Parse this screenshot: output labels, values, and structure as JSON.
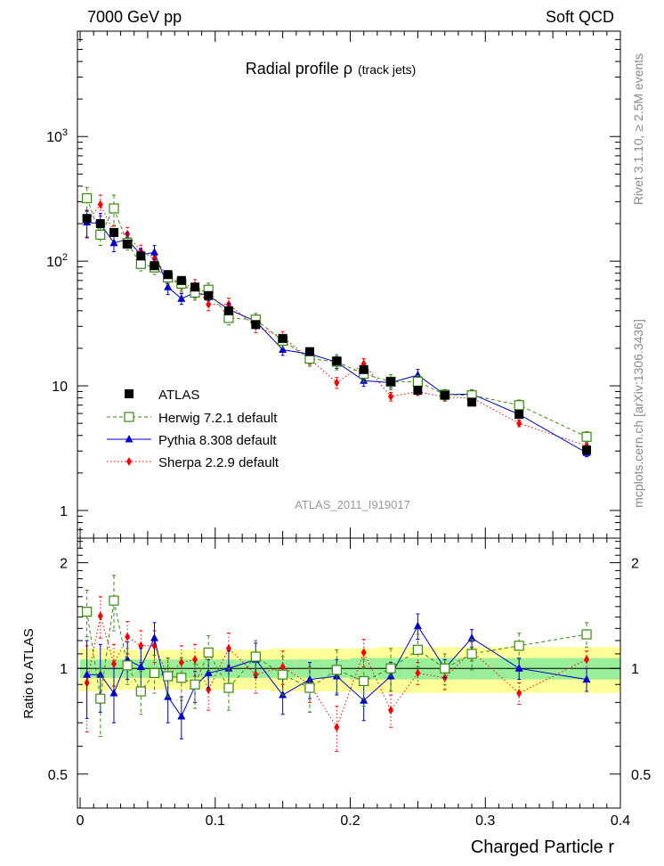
{
  "header": {
    "left": "7000 GeV pp",
    "right": "Soft QCD",
    "side_top": "Rivet 3.1.10, ≥ 2.5M events",
    "side_bottom": "mcplots.cern.ch [arXiv:1306.3436]"
  },
  "chart_data": {
    "type": "scatter",
    "title": "Radial profile  ρ",
    "title_small": "(track jets)",
    "watermark": "ATLAS_2011_I919017",
    "xlabel": "Charged Particle r",
    "ylabel_ratio": "Ratio to ATLAS",
    "log_y": true,
    "xlim": [
      -0.002,
      0.4
    ],
    "ylim": [
      0.6,
      7000
    ],
    "ratio_ylim": [
      0.4,
      2.35
    ],
    "x_ticks": [
      "0",
      "0.1",
      "0.2",
      "0.3",
      "0.4"
    ],
    "y_ticks": [
      "1",
      "10",
      "10^2",
      "10^3"
    ],
    "ratio_y_ticks": [
      "0.5",
      "1",
      "2"
    ],
    "legend_position": "left",
    "x": [
      0.005,
      0.015,
      0.025,
      0.035,
      0.045,
      0.055,
      0.065,
      0.075,
      0.085,
      0.095,
      0.11,
      0.13,
      0.15,
      0.17,
      0.19,
      0.21,
      0.23,
      0.25,
      0.27,
      0.29,
      0.325,
      0.375
    ],
    "series": [
      {
        "name": "ATLAS",
        "color": "#000000",
        "values": [
          220,
          200,
          170,
          137,
          110,
          92,
          78,
          70,
          62,
          53,
          40,
          31,
          24,
          18.8,
          15.8,
          13.5,
          10.8,
          9.2,
          8.4,
          7.4,
          5.9,
          3.05
        ],
        "ratio_band_green": [
          0.06,
          0.06,
          0.06,
          0.06,
          0.06,
          0.06,
          0.06,
          0.06,
          0.06,
          0.06,
          0.06,
          0.06,
          0.06,
          0.06,
          0.06,
          0.07,
          0.07,
          0.07,
          0.07,
          0.07,
          0.07,
          0.07
        ],
        "ratio_band_yellow": [
          0.14,
          0.14,
          0.13,
          0.13,
          0.13,
          0.13,
          0.13,
          0.13,
          0.13,
          0.13,
          0.13,
          0.13,
          0.14,
          0.14,
          0.14,
          0.14,
          0.15,
          0.15,
          0.15,
          0.15,
          0.15,
          0.15
        ]
      },
      {
        "name": "Herwig 7.2.1 default",
        "color": "#3a8a10",
        "values": [
          320,
          163,
          265,
          140,
          95,
          89,
          74,
          66,
          56,
          59,
          35,
          34,
          23,
          16.5,
          15.6,
          12.5,
          10.8,
          10.8,
          8.5,
          8.4,
          7.0,
          3.9
        ],
        "ratio": [
          1.45,
          0.82,
          1.56,
          1.02,
          0.86,
          0.97,
          0.95,
          0.94,
          0.9,
          1.11,
          0.88,
          1.08,
          0.96,
          0.88,
          0.99,
          0.92,
          1.0,
          1.13,
          1.0,
          1.1,
          1.16,
          1.25
        ],
        "ratio_err": [
          0.22,
          0.18,
          0.28,
          0.12,
          0.12,
          0.12,
          0.12,
          0.13,
          0.13,
          0.13,
          0.12,
          0.12,
          0.12,
          0.13,
          0.14,
          0.14,
          0.14,
          0.12,
          0.1,
          0.11,
          0.1,
          0.1
        ]
      },
      {
        "name": "Pythia 8.308 default",
        "color": "#0000cc",
        "values": [
          205,
          200,
          140,
          150,
          112,
          118,
          62,
          50,
          56,
          53,
          41,
          33,
          19.5,
          18.0,
          15.5,
          11.0,
          10.6,
          12.2,
          8.5,
          8.6,
          5.9,
          2.9
        ],
        "ratio": [
          0.96,
          0.96,
          0.85,
          1.06,
          1.01,
          1.22,
          0.83,
          0.73,
          0.89,
          0.97,
          1.0,
          1.06,
          0.84,
          0.93,
          0.95,
          0.81,
          0.95,
          1.32,
          1.0,
          1.22,
          1.0,
          0.93
        ],
        "ratio_err": [
          0.24,
          0.21,
          0.15,
          0.13,
          0.13,
          0.13,
          0.13,
          0.1,
          0.09,
          0.09,
          0.12,
          0.12,
          0.1,
          0.11,
          0.11,
          0.1,
          0.09,
          0.11,
          0.06,
          0.07,
          0.07,
          0.07
        ]
      },
      {
        "name": "Sherpa 2.2.9 default",
        "color": "#ff0000",
        "values": [
          205,
          285,
          170,
          165,
          120,
          105,
          75,
          63,
          64,
          45,
          45,
          30,
          24.5,
          16.5,
          10.6,
          15.0,
          8.2,
          9.0,
          8.1,
          8.0,
          5.0,
          3.3
        ],
        "ratio": [
          0.91,
          1.41,
          1.03,
          1.23,
          1.16,
          1.16,
          0.95,
          1.04,
          1.06,
          0.87,
          1.14,
          0.96,
          1.01,
          0.9,
          0.68,
          1.11,
          0.76,
          0.97,
          0.94,
          1.12,
          0.85,
          1.06
        ],
        "ratio_err": [
          0.25,
          0.19,
          0.14,
          0.13,
          0.12,
          0.12,
          0.12,
          0.12,
          0.11,
          0.11,
          0.12,
          0.11,
          0.11,
          0.1,
          0.1,
          0.1,
          0.08,
          0.07,
          0.07,
          0.07,
          0.06,
          0.06
        ]
      }
    ]
  }
}
